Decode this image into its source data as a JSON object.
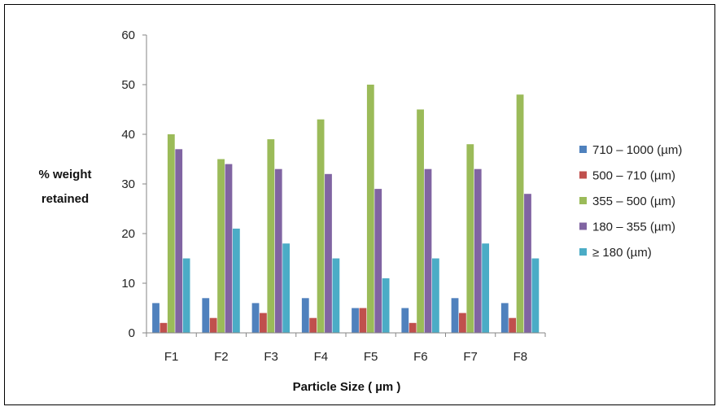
{
  "chart_data": {
    "type": "bar",
    "title": "",
    "xlabel": "Particle Size ( µm )",
    "ylabel_lines": [
      "% weight",
      "retained"
    ],
    "ylim": [
      0,
      60
    ],
    "yticks": [
      0,
      10,
      20,
      30,
      40,
      50,
      60
    ],
    "grid": false,
    "legend_position": "right",
    "categories": [
      "F1",
      "F2",
      "F3",
      "F4",
      "F5",
      "F6",
      "F7",
      "F8"
    ],
    "series": [
      {
        "name": "710 – 1000 (µm)",
        "color": "#4f81bd",
        "values": [
          6,
          7,
          6,
          7,
          5,
          5,
          7,
          6
        ]
      },
      {
        "name": "500 – 710 (µm)",
        "color": "#c0504d",
        "values": [
          2,
          3,
          4,
          3,
          5,
          2,
          4,
          3
        ]
      },
      {
        "name": "355 – 500 (µm)",
        "color": "#9bbb59",
        "values": [
          40,
          35,
          39,
          43,
          50,
          45,
          38,
          48
        ]
      },
      {
        "name": "180 – 355 (µm)",
        "color": "#8064a2",
        "values": [
          37,
          34,
          33,
          32,
          29,
          33,
          33,
          28
        ]
      },
      {
        "name": "≥ 180 (µm)",
        "color": "#4bacc6",
        "values": [
          15,
          21,
          18,
          15,
          11,
          15,
          18,
          15
        ]
      }
    ]
  }
}
